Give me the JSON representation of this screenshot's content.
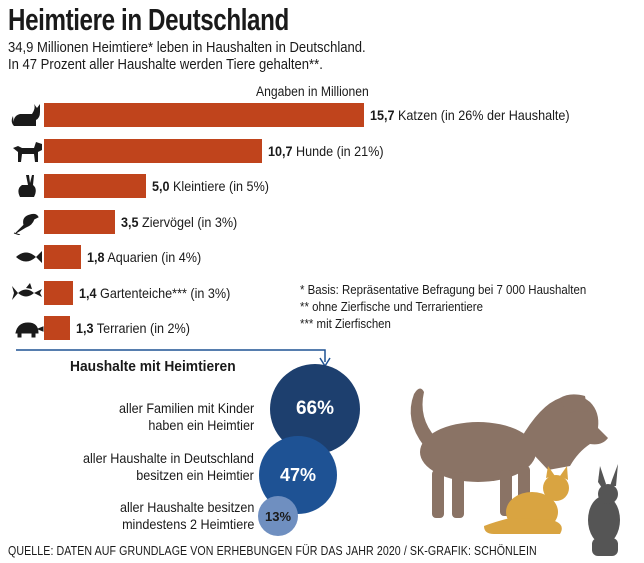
{
  "title": "Heimtiere in Deutschland",
  "subtitle_lines": [
    "34,9 Millionen Heimtiere* leben in Haushalten in Deutschland.",
    "In 47 Prozent aller Haushalte werden Tiere gehalten**."
  ],
  "chart_data": {
    "type": "bar",
    "orientation": "horizontal",
    "unit_label": "Angaben in Millionen",
    "categories": [
      "Katzen",
      "Hunde",
      "Kleintiere",
      "Ziervögel",
      "Aquarien",
      "Gartenteiche***",
      "Terrarien"
    ],
    "values": [
      15.7,
      10.7,
      5.0,
      3.5,
      1.8,
      1.4,
      1.3
    ],
    "value_labels": [
      "15,7",
      "10,7",
      "5,0",
      "3,5",
      "1,8",
      "1,4",
      "1,3"
    ],
    "label_suffixes": [
      " Katzen (in 26% der Haushalte)",
      " Hunde (in 21%)",
      " Kleintiere (in 5%)",
      " Ziervögel (in 3%)",
      " Aquarien (in 4%)",
      " Gartenteiche*** (in 3%)",
      " Terrarien (in 2%)"
    ],
    "icons": [
      "cat-icon",
      "dog-icon",
      "rabbit-icon",
      "parrot-icon",
      "fish-icon",
      "goldfish-icon",
      "turtle-icon"
    ],
    "bar_color": "#c0441c"
  },
  "notes": [
    "* Basis: Repräsentative Befragung bei 7 000 Haushalten",
    "** ohne Zierfische und Terrarientiere",
    "*** mit Zierfischen"
  ],
  "households": {
    "title": "Haushalte mit Heimtieren",
    "items": [
      {
        "line1": "aller Familien mit Kinder",
        "line2": "haben ein Heimtier",
        "value": "66%",
        "fraction": 0.66,
        "color": "#1d3f6e"
      },
      {
        "line1": "aller Haushalte in Deutschland",
        "line2": "besitzen ein Heimtier",
        "value": "47%",
        "fraction": 0.47,
        "color": "#1e5294"
      },
      {
        "line1": "aller Haushalte besitzen",
        "line2": "mindestens 2 Heimtiere",
        "value": "13%",
        "fraction": 0.13,
        "color": "#6f8fc0"
      }
    ]
  },
  "colors": {
    "dog_silhouette": "#8a7365",
    "cat_silhouette": "#d9a441",
    "rabbit_silhouette": "#555555",
    "icon": "#1a1a1a",
    "connector": "#1e5294"
  },
  "source": "QUELLE: DATEN AUF GRUNDLAGE VON ERHEBUNGEN FÜR DAS JAHR 2020 / SK-GRAFIK: SCHÖNLEIN"
}
